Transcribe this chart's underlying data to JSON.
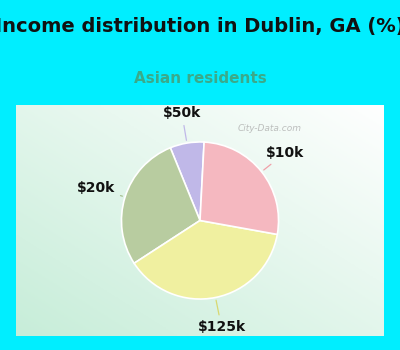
{
  "title": "Income distribution in Dublin, GA (%)",
  "subtitle": "Asian residents",
  "title_fontsize": 14,
  "subtitle_fontsize": 11,
  "title_color": "#111111",
  "subtitle_color": "#3aaa8a",
  "border_color": "#00eeff",
  "border_width": 12,
  "chart_bg_left": "#c5ecd8",
  "chart_bg_right": "#eaf8f0",
  "labels": [
    "$50k",
    "$20k",
    "$125k",
    "$10k"
  ],
  "sizes": [
    7,
    28,
    38,
    27
  ],
  "colors": [
    "#c0b8e8",
    "#b8cca0",
    "#f0f0a0",
    "#f5b8c0"
  ],
  "startangle": 87,
  "label_fontsize": 10,
  "label_color": "#111111",
  "line_colors": [
    "#c0b8e8",
    "#a8c090",
    "#d8d870",
    "#f0a0a8"
  ],
  "watermark": "City-Data.com"
}
